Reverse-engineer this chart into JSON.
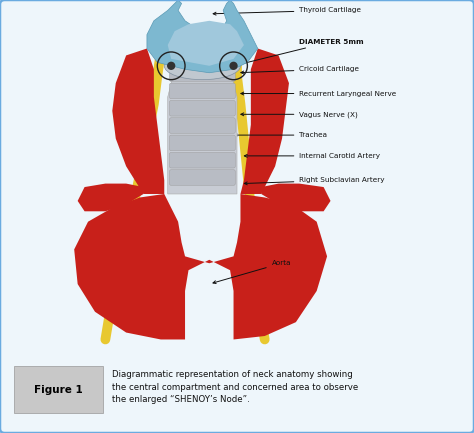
{
  "background_color": "#eef6fb",
  "border_color": "#6aabe0",
  "colors": {
    "red": "#c8201a",
    "blue": "#7db8d0",
    "blue_dark": "#5a9ab5",
    "yellow": "#e8c830",
    "light_gray": "#c8ccd4",
    "trachea_bg": "#d8dce4",
    "white": "#ffffff",
    "circle_edge": "#333333",
    "ann": "#111111"
  },
  "labels": {
    "thyroid_cartilage": "Thyroid Cartilage",
    "diameter": "DIAMETER 5mm",
    "cricoid_cartilage": "Cricoid Cartilage",
    "recurrent_nerve": "Recurrent Laryngeal Nerve",
    "vagus_nerve": "Vagus Nerve (X)",
    "trachea": "Trachea",
    "internal_carotid": "Internal Carotid Artery",
    "right_subclavian": "Right Subclavian Artery",
    "aorta": "Aorta"
  },
  "figure_caption": "Diagrammatic representation of neck anatomy showing\nthe central compartment and concerned area to observe\nthe enlarged “SHENOY’s Node”.",
  "figure_label": "Figure 1"
}
